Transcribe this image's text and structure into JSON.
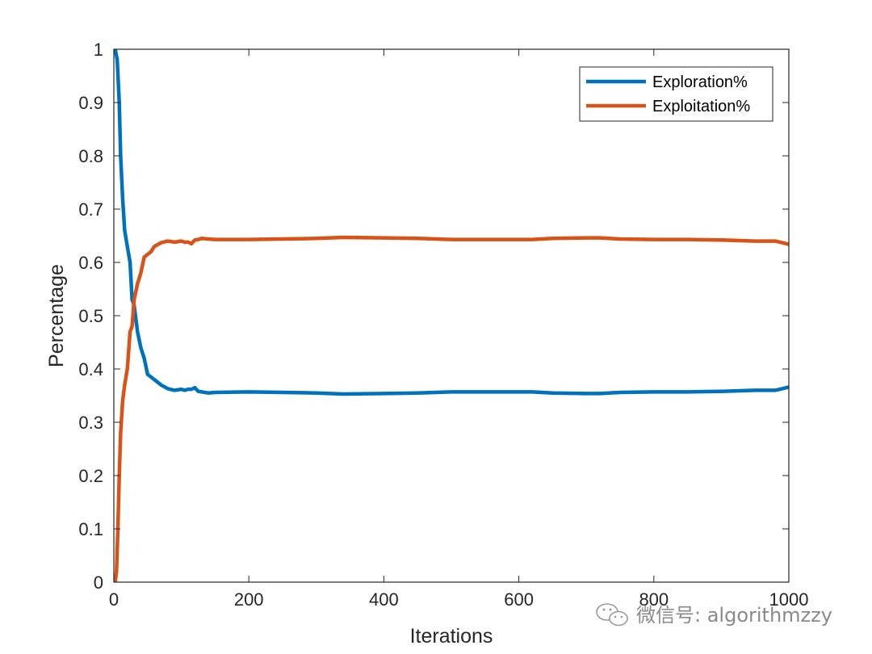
{
  "chart_data": {
    "type": "line",
    "title": "",
    "xlabel": "Iterations",
    "ylabel": "Percentage",
    "xlim": [
      0,
      1000
    ],
    "ylim": [
      0,
      1
    ],
    "xticks": [
      0,
      200,
      400,
      600,
      800,
      1000
    ],
    "yticks": [
      0,
      0.1,
      0.2,
      0.3,
      0.4,
      0.5,
      0.6,
      0.7,
      0.8,
      0.9,
      1
    ],
    "xtick_labels": [
      "0",
      "200",
      "400",
      "600",
      "800",
      "1000"
    ],
    "ytick_labels": [
      "0",
      "0.1",
      "0.2",
      "0.3",
      "0.4",
      "0.5",
      "0.6",
      "0.7",
      "0.8",
      "0.9",
      "1"
    ],
    "grid": false,
    "legend_position": "top-right",
    "series": [
      {
        "name": "Exploration%",
        "color": "#0072BD",
        "x": [
          2,
          5,
          8,
          10,
          13,
          16,
          20,
          24,
          27,
          30,
          35,
          40,
          45,
          50,
          55,
          60,
          70,
          80,
          90,
          100,
          105,
          110,
          115,
          120,
          125,
          130,
          140,
          150,
          200,
          250,
          300,
          340,
          400,
          450,
          500,
          550,
          600,
          620,
          650,
          700,
          720,
          750,
          800,
          850,
          900,
          950,
          980,
          1000
        ],
        "y": [
          1.0,
          0.98,
          0.9,
          0.8,
          0.72,
          0.66,
          0.63,
          0.6,
          0.53,
          0.52,
          0.47,
          0.44,
          0.42,
          0.39,
          0.385,
          0.38,
          0.37,
          0.363,
          0.36,
          0.362,
          0.36,
          0.362,
          0.362,
          0.365,
          0.358,
          0.357,
          0.355,
          0.356,
          0.357,
          0.356,
          0.355,
          0.353,
          0.354,
          0.355,
          0.357,
          0.357,
          0.357,
          0.357,
          0.355,
          0.354,
          0.354,
          0.356,
          0.357,
          0.357,
          0.358,
          0.36,
          0.36,
          0.366
        ]
      },
      {
        "name": "Exploitation%",
        "color": "#D95319",
        "x": [
          2,
          4,
          6,
          8,
          10,
          13,
          16,
          20,
          24,
          27,
          30,
          35,
          40,
          45,
          50,
          55,
          60,
          70,
          80,
          90,
          100,
          105,
          110,
          115,
          120,
          125,
          130,
          140,
          150,
          200,
          250,
          300,
          340,
          400,
          450,
          500,
          550,
          600,
          620,
          650,
          700,
          720,
          750,
          800,
          850,
          900,
          950,
          980,
          1000
        ],
        "y": [
          0.0,
          0.02,
          0.1,
          0.2,
          0.28,
          0.34,
          0.37,
          0.4,
          0.47,
          0.48,
          0.53,
          0.56,
          0.58,
          0.61,
          0.615,
          0.62,
          0.63,
          0.637,
          0.64,
          0.638,
          0.64,
          0.638,
          0.638,
          0.635,
          0.642,
          0.643,
          0.645,
          0.644,
          0.643,
          0.643,
          0.644,
          0.645,
          0.647,
          0.646,
          0.645,
          0.643,
          0.643,
          0.643,
          0.643,
          0.645,
          0.646,
          0.646,
          0.644,
          0.643,
          0.643,
          0.642,
          0.64,
          0.64,
          0.634
        ]
      }
    ]
  },
  "watermark": {
    "text": "微信号: algorithmzzy",
    "icon": "wechat-icon"
  }
}
